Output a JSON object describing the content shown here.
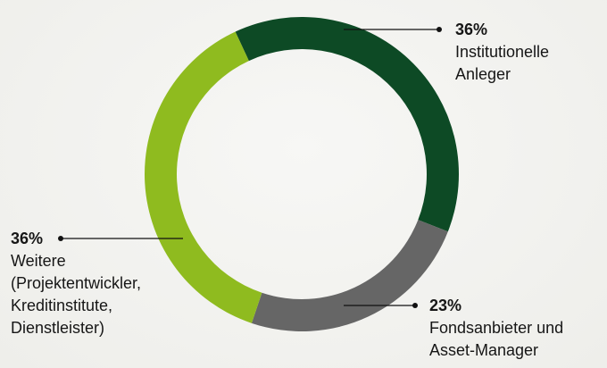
{
  "chart_data": {
    "type": "donut",
    "categories": [
      "Institutionelle Anleger",
      "Fondsanbieter und Asset-Manager",
      "Weitere (Projektentwickler, Kreditinstitute, Dienstleister)"
    ],
    "values": [
      36,
      23,
      36
    ],
    "value_labels": [
      "36%",
      "23%",
      "36%"
    ],
    "colors": [
      "#0d4a25",
      "#666666",
      "#8fbb1f"
    ]
  }
}
